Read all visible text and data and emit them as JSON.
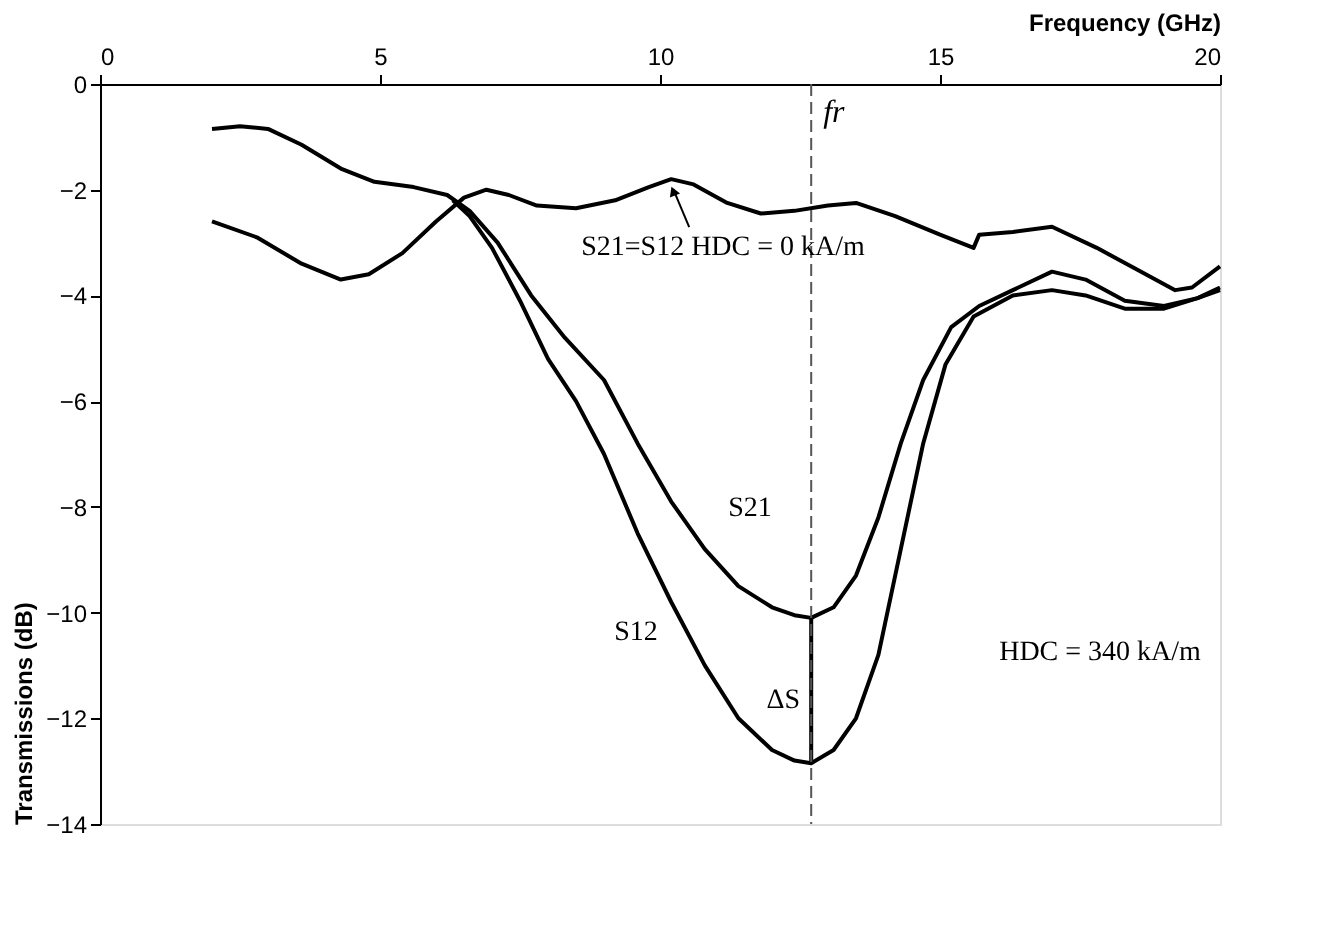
{
  "chart_data": {
    "type": "line",
    "xlabel": "Frequency (GHz)",
    "ylabel": "Transmissions (dB)",
    "xlim": [
      0,
      20
    ],
    "xticks": [
      0,
      5,
      10,
      15,
      20
    ],
    "ylim": [
      -14,
      0
    ],
    "yticks": [
      0,
      -2,
      -4,
      -6,
      -8,
      -10,
      -12,
      -14
    ],
    "grid": false,
    "marker": "none",
    "line_style": "solid",
    "series": [
      {
        "color": "#000000",
        "x": [
          2.0,
          2.8,
          3.6,
          4.3,
          4.8,
          5.4,
          6.0,
          6.5,
          6.9,
          7.3,
          7.8,
          8.5,
          9.2,
          9.8,
          10.2,
          10.6,
          11.2,
          11.8,
          12.4,
          13.0,
          13.5,
          14.2,
          15.0,
          15.6,
          15.7,
          16.3,
          17.0,
          17.8,
          18.5,
          19.2,
          19.5,
          20.0
        ],
        "values": [
          -2.6,
          -2.9,
          -3.4,
          -3.7,
          -3.6,
          -3.2,
          -2.6,
          -2.15,
          -2.0,
          -2.1,
          -2.3,
          -2.35,
          -2.2,
          -1.95,
          -1.8,
          -1.9,
          -2.25,
          -2.45,
          -2.4,
          -2.3,
          -2.25,
          -2.5,
          -2.85,
          -3.1,
          -2.85,
          -2.8,
          -2.7,
          -3.1,
          -3.5,
          -3.9,
          -3.85,
          -3.45
        ]
      },
      {
        "color": "#000000",
        "x": [
          2.0,
          2.5,
          3.0,
          3.6,
          4.3,
          4.9,
          5.6,
          6.2,
          6.6,
          7.1,
          7.7,
          8.3,
          9.0,
          9.6,
          10.2,
          10.8,
          11.4,
          12.0,
          12.4,
          12.7,
          13.1,
          13.5,
          13.9,
          14.3,
          14.7,
          15.2,
          15.7,
          16.3,
          17.0,
          17.6,
          18.3,
          19.0,
          19.6,
          20.0
        ],
        "values": [
          -0.85,
          -0.8,
          -0.85,
          -1.15,
          -1.6,
          -1.85,
          -1.95,
          -2.1,
          -2.4,
          -3.0,
          -4.0,
          -4.8,
          -5.6,
          -6.8,
          -7.9,
          -8.8,
          -9.5,
          -9.9,
          -10.05,
          -10.1,
          -9.9,
          -9.3,
          -8.2,
          -6.8,
          -5.6,
          -4.6,
          -4.2,
          -3.9,
          -3.55,
          -3.7,
          -4.1,
          -4.2,
          -4.05,
          -3.85
        ]
      },
      {
        "color": "#000000",
        "x": [
          6.3,
          6.6,
          7.0,
          7.5,
          8.0,
          8.5,
          9.0,
          9.6,
          10.2,
          10.8,
          11.4,
          12.0,
          12.4,
          12.7,
          13.1,
          13.5,
          13.9,
          14.3,
          14.7,
          15.1,
          15.6,
          16.3,
          17.0,
          17.6,
          18.3,
          19.0,
          19.6,
          20.0
        ],
        "values": [
          -2.2,
          -2.5,
          -3.1,
          -4.1,
          -5.2,
          -6.0,
          -7.0,
          -8.5,
          -9.8,
          -11.0,
          -12.0,
          -12.6,
          -12.8,
          -12.85,
          -12.6,
          -12.0,
          -10.8,
          -8.8,
          -6.8,
          -5.3,
          -4.4,
          -4.0,
          -3.9,
          -4.0,
          -4.25,
          -4.25,
          -4.05,
          -3.9
        ]
      },
      {
        "color": "#000000",
        "x": [
          12.7,
          12.7
        ],
        "values": [
          -10.1,
          -12.85
        ]
      }
    ],
    "ref_lines": [
      {
        "axis": "x",
        "value": 12.7,
        "label": "fr",
        "line_style": "dashed",
        "color": "#555555"
      }
    ],
    "annotations": [
      {
        "text": "S21=S12  HDC = 0 kA/m",
        "x": 10.2,
        "y": -1.8
      },
      "S21",
      "S12",
      "ΔS",
      "HDC = 340 kA/m"
    ]
  }
}
